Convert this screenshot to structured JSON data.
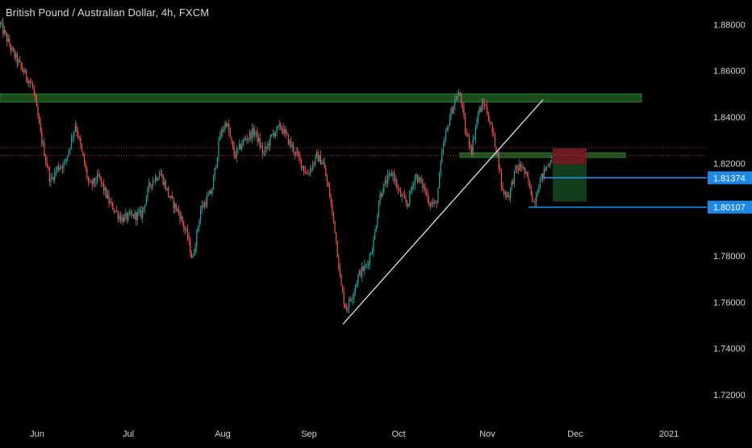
{
  "header": {
    "title": "British Pound / Australian Dollar, 4h, FXCM"
  },
  "chart_data": {
    "type": "candlestick",
    "symbol": "British Pound / Australian Dollar",
    "interval": "4h",
    "source": "FXCM",
    "ylim": [
      1.705,
      1.885
    ],
    "y_ticks": [
      "1.88000",
      "1.86000",
      "1.84000",
      "1.82000",
      "1.80000",
      "1.78000",
      "1.76000",
      "1.74000",
      "1.72000"
    ],
    "x_ticks": [
      "Jun",
      "Jul",
      "Aug",
      "Sep",
      "Oct",
      "Nov",
      "Dec",
      "2021"
    ],
    "price_labels": [
      {
        "label": "1.81374",
        "value": 1.81374
      },
      {
        "label": "1.80107",
        "value": 1.80107
      }
    ],
    "path": [
      {
        "t": 0,
        "p": 1.88
      },
      {
        "t": 15,
        "p": 1.868
      },
      {
        "t": 28,
        "p": 1.86
      },
      {
        "t": 40,
        "p": 1.853
      },
      {
        "t": 50,
        "p": 1.832
      },
      {
        "t": 62,
        "p": 1.812
      },
      {
        "t": 70,
        "p": 1.818
      },
      {
        "t": 80,
        "p": 1.82
      },
      {
        "t": 93,
        "p": 1.837
      },
      {
        "t": 100,
        "p": 1.826
      },
      {
        "t": 110,
        "p": 1.81
      },
      {
        "t": 122,
        "p": 1.814
      },
      {
        "t": 135,
        "p": 1.803
      },
      {
        "t": 150,
        "p": 1.796
      },
      {
        "t": 160,
        "p": 1.797
      },
      {
        "t": 175,
        "p": 1.798
      },
      {
        "t": 185,
        "p": 1.811
      },
      {
        "t": 198,
        "p": 1.816
      },
      {
        "t": 210,
        "p": 1.805
      },
      {
        "t": 222,
        "p": 1.798
      },
      {
        "t": 232,
        "p": 1.788
      },
      {
        "t": 238,
        "p": 1.778
      },
      {
        "t": 248,
        "p": 1.8
      },
      {
        "t": 262,
        "p": 1.808
      },
      {
        "t": 272,
        "p": 1.832
      },
      {
        "t": 280,
        "p": 1.838
      },
      {
        "t": 290,
        "p": 1.823
      },
      {
        "t": 302,
        "p": 1.83
      },
      {
        "t": 315,
        "p": 1.834
      },
      {
        "t": 326,
        "p": 1.824
      },
      {
        "t": 338,
        "p": 1.833
      },
      {
        "t": 348,
        "p": 1.836
      },
      {
        "t": 358,
        "p": 1.829
      },
      {
        "t": 370,
        "p": 1.822
      },
      {
        "t": 380,
        "p": 1.815
      },
      {
        "t": 392,
        "p": 1.823
      },
      {
        "t": 400,
        "p": 1.82
      },
      {
        "t": 408,
        "p": 1.806
      },
      {
        "t": 415,
        "p": 1.79
      },
      {
        "t": 422,
        "p": 1.767
      },
      {
        "t": 428,
        "p": 1.757
      },
      {
        "t": 436,
        "p": 1.763
      },
      {
        "t": 444,
        "p": 1.772
      },
      {
        "t": 454,
        "p": 1.776
      },
      {
        "t": 462,
        "p": 1.785
      },
      {
        "t": 470,
        "p": 1.806
      },
      {
        "t": 478,
        "p": 1.812
      },
      {
        "t": 486,
        "p": 1.816
      },
      {
        "t": 494,
        "p": 1.807
      },
      {
        "t": 504,
        "p": 1.802
      },
      {
        "t": 514,
        "p": 1.815
      },
      {
        "t": 524,
        "p": 1.81
      },
      {
        "t": 532,
        "p": 1.803
      },
      {
        "t": 540,
        "p": 1.802
      },
      {
        "t": 548,
        "p": 1.826
      },
      {
        "t": 556,
        "p": 1.839
      },
      {
        "t": 564,
        "p": 1.848
      },
      {
        "t": 570,
        "p": 1.85
      },
      {
        "t": 576,
        "p": 1.834
      },
      {
        "t": 584,
        "p": 1.826
      },
      {
        "t": 592,
        "p": 1.842
      },
      {
        "t": 600,
        "p": 1.846
      },
      {
        "t": 608,
        "p": 1.836
      },
      {
        "t": 616,
        "p": 1.824
      },
      {
        "t": 622,
        "p": 1.808
      },
      {
        "t": 630,
        "p": 1.806
      },
      {
        "t": 638,
        "p": 1.817
      },
      {
        "t": 646,
        "p": 1.819
      },
      {
        "t": 654,
        "p": 1.812
      },
      {
        "t": 661,
        "p": 1.803
      },
      {
        "t": 668,
        "p": 1.812
      },
      {
        "t": 676,
        "p": 1.818
      },
      {
        "t": 684,
        "p": 1.823
      }
    ],
    "annotations": {
      "resistance_zone": {
        "price_low": 1.8465,
        "price_high": 1.85,
        "x_start": 0,
        "x_end": 795
      },
      "minor_zone": {
        "price_low": 1.8225,
        "price_high": 1.8245,
        "x_start": 570,
        "x_end": 775
      },
      "trendline": {
        "x1": 425,
        "p1": 1.7505,
        "x2": 673,
        "p2": 1.8475
      },
      "position_risk": {
        "price_low": 1.8195,
        "price_high": 1.8265,
        "x_start": 685,
        "x_end": 727
      },
      "position_reward": {
        "price_low": 1.8035,
        "price_high": 1.8195,
        "x_start": 685,
        "x_end": 727
      },
      "level_1": {
        "price": 1.81374,
        "x_start": 673
      },
      "level_2": {
        "price": 1.80107,
        "x_start": 655
      },
      "last_price_dotted": 1.8235
    },
    "colors": {
      "up": "#26a69a",
      "down": "#ef5350",
      "resistance_fill": "#1c4d1f",
      "resistance_stroke": "#2e7d32",
      "level_line": "#2196f3",
      "price_tag_bg": "#1e88e5",
      "risk_fill": "#6b1a22",
      "reward_fill": "#123d1c",
      "trendline": "#e0e0e0",
      "dotted": "#a83a3a",
      "axis_text": "#d1d4dc"
    }
  }
}
